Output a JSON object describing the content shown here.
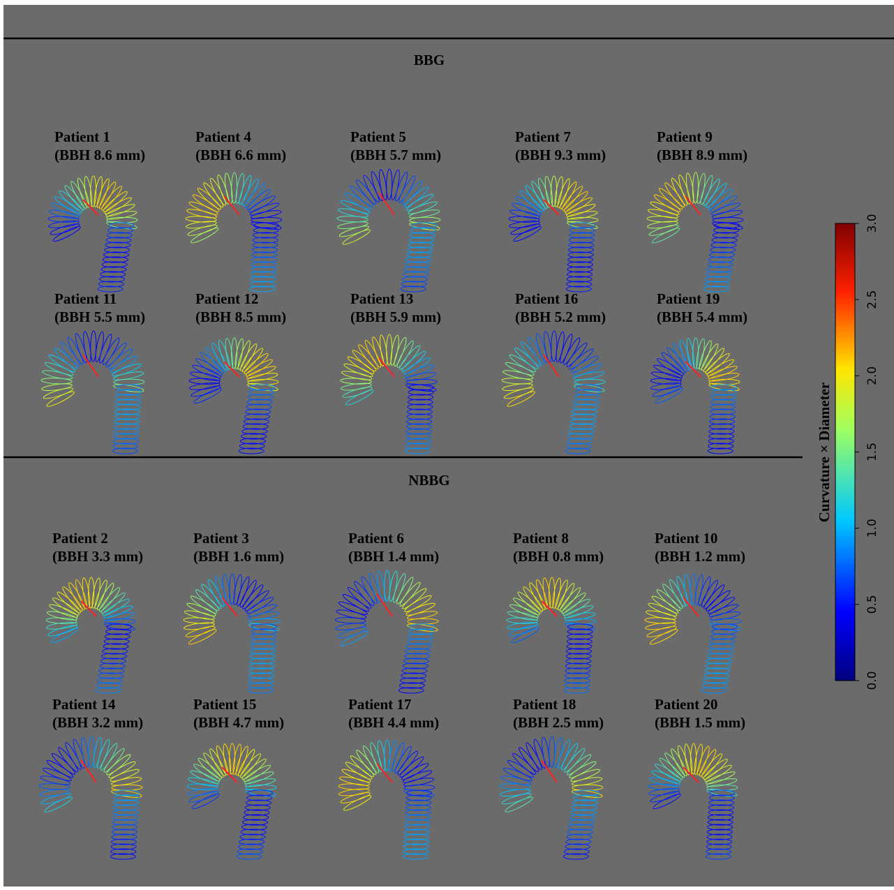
{
  "groups": [
    {
      "title": "BBG",
      "patients": [
        {
          "name": "Patient 1",
          "bbh": "(BBH 8.6 mm)"
        },
        {
          "name": "Patient 4",
          "bbh": "(BBH 6.6 mm)"
        },
        {
          "name": "Patient 5",
          "bbh": "(BBH 5.7 mm)"
        },
        {
          "name": "Patient 7",
          "bbh": "(BBH 9.3 mm)"
        },
        {
          "name": "Patient 9",
          "bbh": "(BBH 8.9 mm)"
        },
        {
          "name": "Patient 11",
          "bbh": "(BBH 5.5 mm)"
        },
        {
          "name": "Patient 12",
          "bbh": "(BBH 8.5 mm)"
        },
        {
          "name": "Patient 13",
          "bbh": "(BBH 5.9 mm)"
        },
        {
          "name": "Patient 16",
          "bbh": "(BBH 5.2 mm)"
        },
        {
          "name": "Patient 19",
          "bbh": "(BBH 5.4 mm)"
        }
      ]
    },
    {
      "title": "NBBG",
      "patients": [
        {
          "name": "Patient 2",
          "bbh": "(BBH 3.3 mm)"
        },
        {
          "name": "Patient 3",
          "bbh": "(BBH 1.6 mm)"
        },
        {
          "name": "Patient 6",
          "bbh": "(BBH 1.4 mm)"
        },
        {
          "name": "Patient 8",
          "bbh": "(BBH 0.8 mm)"
        },
        {
          "name": "Patient 10",
          "bbh": "(BBH 1.2 mm)"
        },
        {
          "name": "Patient 14",
          "bbh": "(BBH 3.2 mm)"
        },
        {
          "name": "Patient 15",
          "bbh": "(BBH 4.7 mm)"
        },
        {
          "name": "Patient 17",
          "bbh": "(BBH 4.4 mm)"
        },
        {
          "name": "Patient 18",
          "bbh": "(BBH 2.5 mm)"
        },
        {
          "name": "Patient 20",
          "bbh": "(BBH 1.5 mm)"
        }
      ]
    }
  ],
  "colorbar": {
    "label": "Curvature × Diameter",
    "lim": [
      0,
      3
    ],
    "ticks": [
      {
        "value": 0,
        "label": "0.0"
      },
      {
        "value": 0.5,
        "label": "0.5"
      },
      {
        "value": 1,
        "label": "1.0"
      },
      {
        "value": 1.5,
        "label": "1.5"
      },
      {
        "value": 2,
        "label": "2.0"
      },
      {
        "value": 2.5,
        "label": "2.5"
      },
      {
        "value": 3,
        "label": "3.0"
      }
    ]
  }
}
